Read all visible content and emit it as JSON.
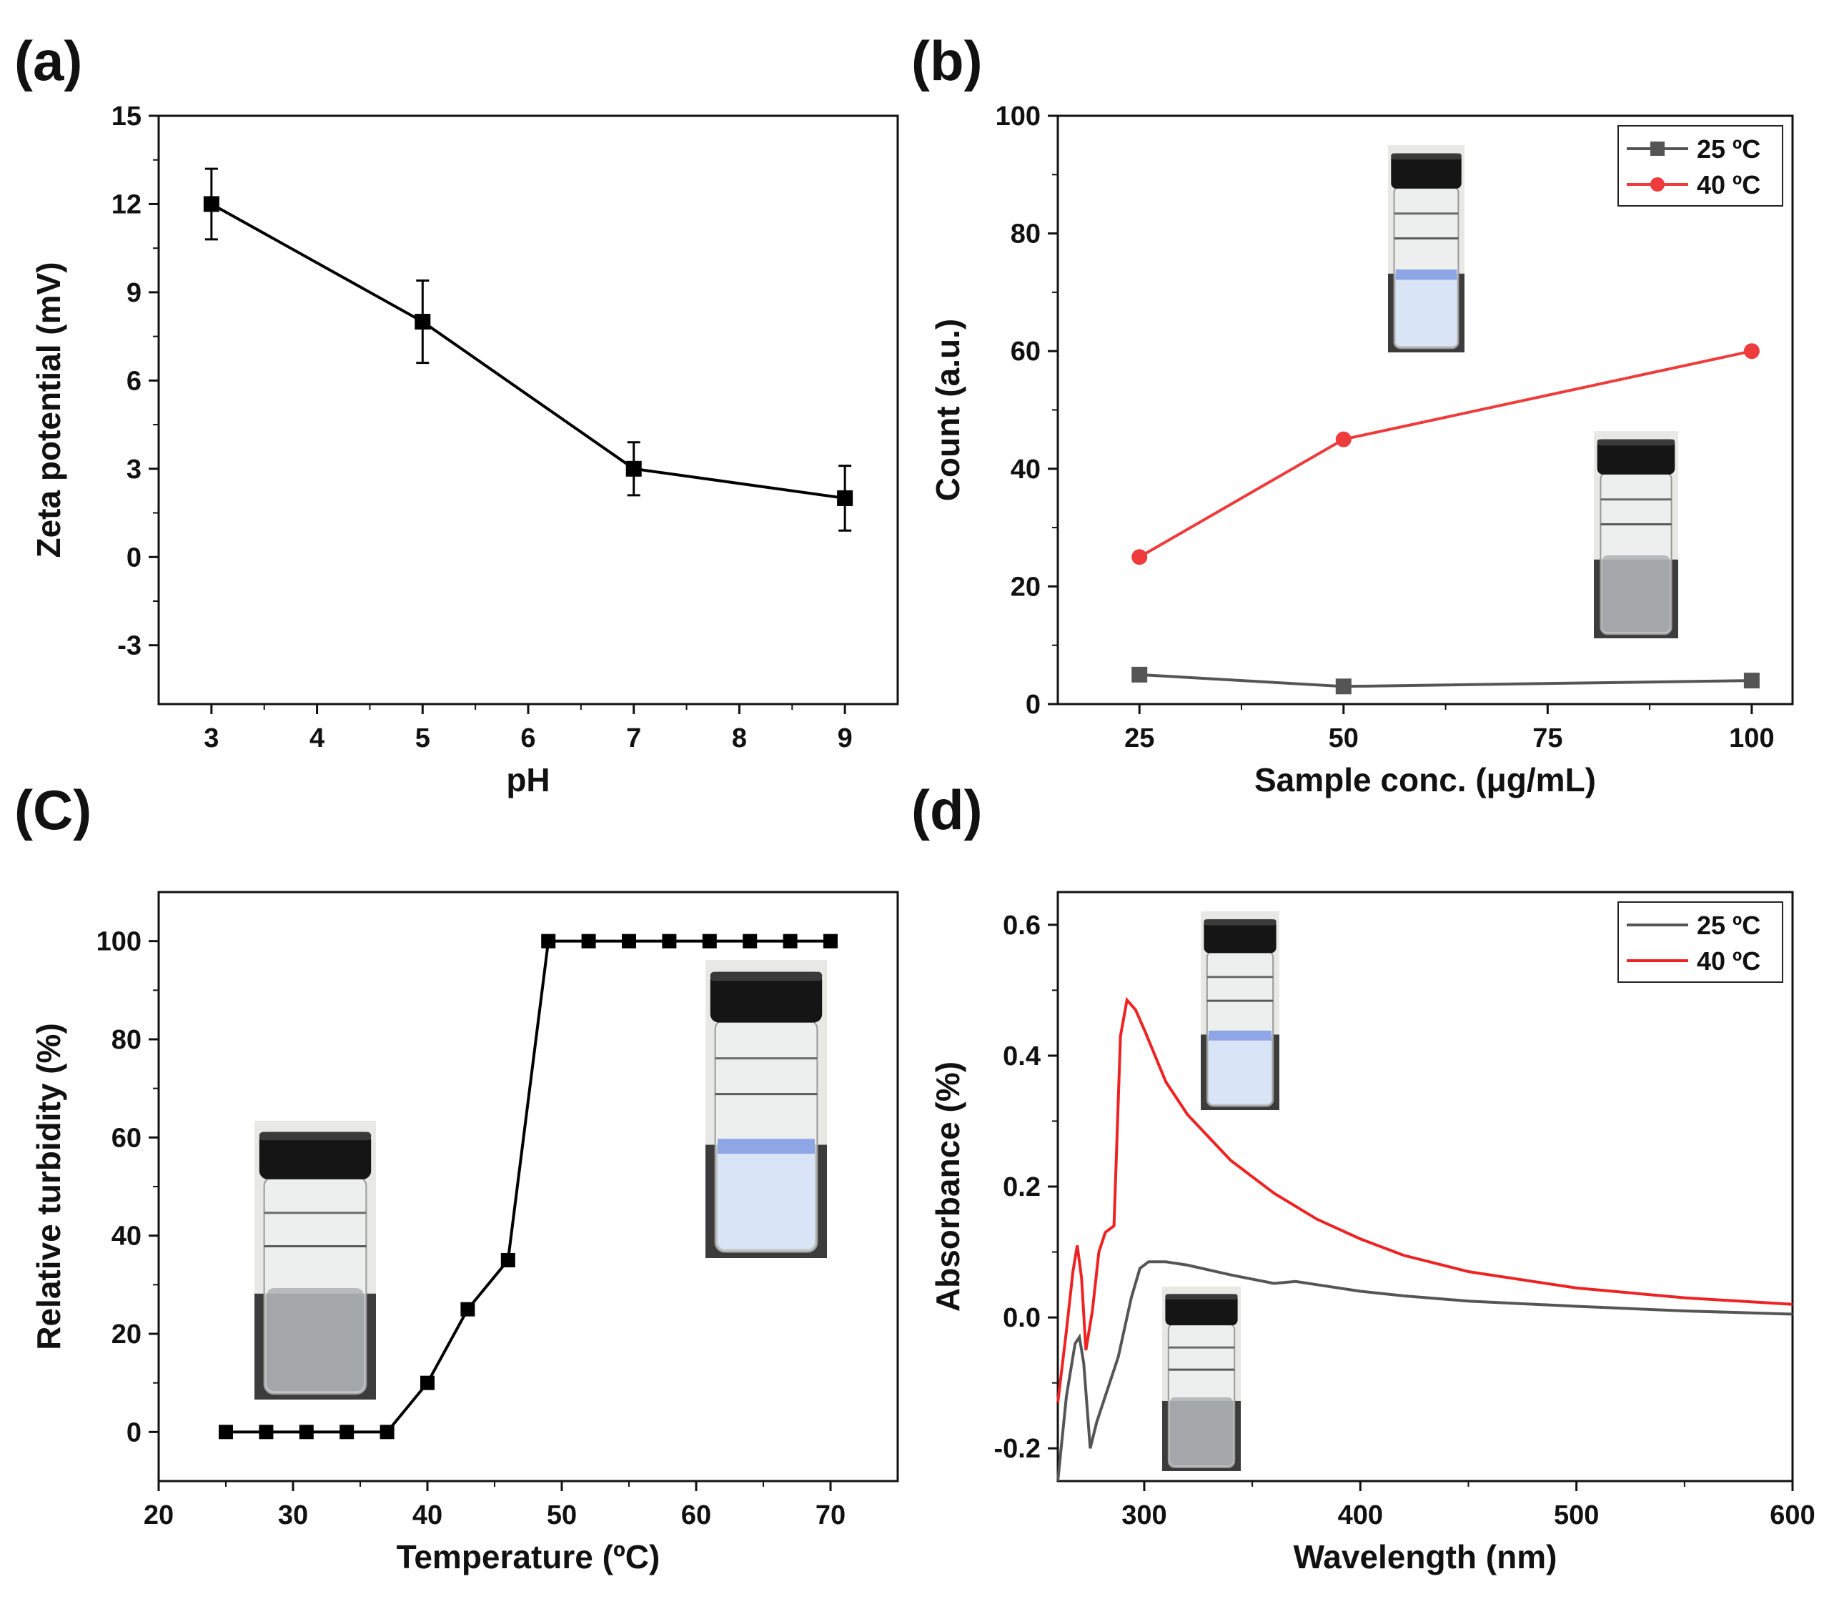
{
  "chart_data": [
    {
      "panel": "(a)",
      "type": "line",
      "title": "",
      "xlabel": "pH",
      "ylabel": "Zeta potential (mV)",
      "xlim": [
        2.5,
        9.5
      ],
      "ylim": [
        -5,
        15
      ],
      "xticks": [
        3,
        4,
        5,
        6,
        7,
        8,
        9
      ],
      "xtick_labels": [
        "3",
        "4",
        "5",
        "6",
        "7",
        "8",
        "9"
      ],
      "yticks": [
        -3,
        0,
        3,
        6,
        9,
        12,
        15
      ],
      "ytick_labels": [
        "-3",
        "0",
        "3",
        "6",
        "9",
        "12",
        "15"
      ],
      "series": [
        {
          "name": "",
          "color": "#000000",
          "marker": "square",
          "x": [
            3,
            5,
            7,
            9
          ],
          "y": [
            12,
            8,
            3,
            2
          ],
          "yerr": [
            1.2,
            1.4,
            0.9,
            1.1
          ]
        }
      ]
    },
    {
      "panel": "(b)",
      "type": "line",
      "title": "",
      "xlabel": "Sample conc. (μg/mL)",
      "ylabel": "Count (a.u.)",
      "xlim": [
        15,
        105
      ],
      "ylim": [
        0,
        100
      ],
      "xticks": [
        25,
        50,
        75,
        100
      ],
      "xtick_labels": [
        "25",
        "50",
        "75",
        "100"
      ],
      "yticks": [
        0,
        20,
        40,
        60,
        80,
        100
      ],
      "ytick_labels": [
        "0",
        "20",
        "40",
        "60",
        "80",
        "100"
      ],
      "legend_position": "top-right",
      "series": [
        {
          "name": "25 ºC",
          "color": "#555555",
          "marker": "square",
          "x": [
            25,
            50,
            100
          ],
          "y": [
            5,
            3,
            4
          ]
        },
        {
          "name": "40 ºC",
          "color": "#ee3b3b",
          "marker": "circle",
          "x": [
            25,
            50,
            100
          ],
          "y": [
            25,
            45,
            60
          ]
        }
      ]
    },
    {
      "panel": "(C)",
      "type": "line",
      "title": "",
      "xlabel": "Temperature (ºC)",
      "ylabel": "Relative turbidity (%)",
      "xlim": [
        20,
        75
      ],
      "ylim": [
        -10,
        110
      ],
      "xticks": [
        20,
        30,
        40,
        50,
        60,
        70
      ],
      "xtick_labels": [
        "20",
        "30",
        "40",
        "50",
        "60",
        "70"
      ],
      "yticks": [
        0,
        20,
        40,
        60,
        80,
        100
      ],
      "ytick_labels": [
        "0",
        "20",
        "40",
        "60",
        "80",
        "100"
      ],
      "series": [
        {
          "name": "",
          "color": "#000000",
          "marker": "square",
          "x": [
            25,
            28,
            31,
            34,
            37,
            40,
            43,
            46,
            49,
            52,
            55,
            58,
            61,
            64,
            67,
            70
          ],
          "y": [
            0,
            0,
            0,
            0,
            0,
            10,
            25,
            35,
            100,
            100,
            100,
            100,
            100,
            100,
            100,
            100
          ]
        }
      ]
    },
    {
      "panel": "(d)",
      "type": "line",
      "title": "",
      "xlabel": "Wavelength (nm)",
      "ylabel": "Absorbance (%)",
      "xlim": [
        260,
        600
      ],
      "ylim": [
        -0.25,
        0.65
      ],
      "xticks": [
        300,
        400,
        500,
        600
      ],
      "xtick_labels": [
        "300",
        "400",
        "500",
        "600"
      ],
      "yticks": [
        -0.2,
        0.0,
        0.2,
        0.4,
        0.6
      ],
      "ytick_labels": [
        "-0.2",
        "0.0",
        "0.2",
        "0.4",
        "0.6"
      ],
      "legend_position": "top-right",
      "series": [
        {
          "name": "25 ºC",
          "color": "#555555",
          "x": [
            260,
            264,
            268,
            270,
            272,
            275,
            278,
            282,
            288,
            294,
            298,
            302,
            310,
            320,
            340,
            360,
            370,
            380,
            400,
            420,
            450,
            500,
            550,
            600
          ],
          "y": [
            -0.25,
            -0.12,
            -0.04,
            -0.03,
            -0.07,
            -0.2,
            -0.16,
            -0.12,
            -0.06,
            0.03,
            0.075,
            0.085,
            0.085,
            0.08,
            0.065,
            0.052,
            0.055,
            0.05,
            0.04,
            0.033,
            0.025,
            0.017,
            0.01,
            0.005
          ]
        },
        {
          "name": "40 ºC",
          "color": "#ee2222",
          "x": [
            260,
            264,
            267,
            269,
            271,
            273,
            276,
            279,
            282,
            286,
            289,
            292,
            296,
            300,
            305,
            310,
            320,
            340,
            360,
            380,
            400,
            420,
            450,
            500,
            550,
            600
          ],
          "y": [
            -0.13,
            -0.02,
            0.07,
            0.11,
            0.06,
            -0.05,
            0.01,
            0.1,
            0.13,
            0.14,
            0.43,
            0.485,
            0.47,
            0.44,
            0.4,
            0.36,
            0.31,
            0.24,
            0.19,
            0.15,
            0.12,
            0.095,
            0.07,
            0.045,
            0.03,
            0.02
          ]
        }
      ]
    }
  ]
}
